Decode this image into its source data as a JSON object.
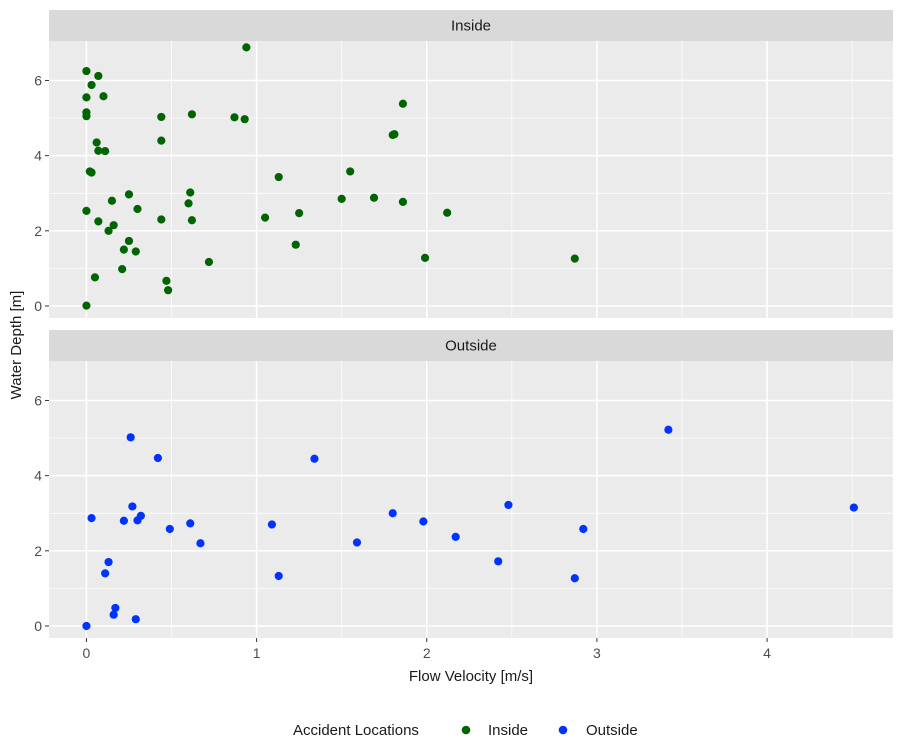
{
  "chart_data": {
    "type": "scatter",
    "xlabel": "Flow Velocity [m/s]",
    "ylabel": "Water Depth [m]",
    "xlim": [
      -0.22,
      4.74
    ],
    "ylim": [
      -0.32,
      7.05
    ],
    "x_ticks": [
      0,
      1,
      2,
      3,
      4
    ],
    "y_ticks": [
      0,
      2,
      4,
      6
    ],
    "grid": true,
    "legend_position": "bottom",
    "legend_title": "Accident Locations",
    "colors": {
      "Inside": "#006400",
      "Outside": "#0033ff"
    },
    "panels": [
      {
        "label": "Inside",
        "series": "Inside",
        "points": [
          [
            0.0,
            6.25
          ],
          [
            0.07,
            6.12
          ],
          [
            0.03,
            5.88
          ],
          [
            0.0,
            5.55
          ],
          [
            0.1,
            5.58
          ],
          [
            0.0,
            5.15
          ],
          [
            0.0,
            5.05
          ],
          [
            0.06,
            4.35
          ],
          [
            0.07,
            4.13
          ],
          [
            0.11,
            4.12
          ],
          [
            0.02,
            3.58
          ],
          [
            0.03,
            3.55
          ],
          [
            0.15,
            2.8
          ],
          [
            0.25,
            2.97
          ],
          [
            0.3,
            2.58
          ],
          [
            0.0,
            2.53
          ],
          [
            0.07,
            2.25
          ],
          [
            0.16,
            2.15
          ],
          [
            0.13,
            2.0
          ],
          [
            0.25,
            1.73
          ],
          [
            0.22,
            1.5
          ],
          [
            0.29,
            1.45
          ],
          [
            0.21,
            0.98
          ],
          [
            0.05,
            0.76
          ],
          [
            0.0,
            0.01
          ],
          [
            0.44,
            5.03
          ],
          [
            0.44,
            4.4
          ],
          [
            0.44,
            2.3
          ],
          [
            0.47,
            0.67
          ],
          [
            0.48,
            0.42
          ],
          [
            0.6,
            2.73
          ],
          [
            0.61,
            3.02
          ],
          [
            0.62,
            2.28
          ],
          [
            0.62,
            5.1
          ],
          [
            0.72,
            1.17
          ],
          [
            0.87,
            5.02
          ],
          [
            0.93,
            4.97
          ],
          [
            0.94,
            6.88
          ],
          [
            1.05,
            2.35
          ],
          [
            1.13,
            3.43
          ],
          [
            1.23,
            1.63
          ],
          [
            1.25,
            2.47
          ],
          [
            1.5,
            2.85
          ],
          [
            1.55,
            3.58
          ],
          [
            1.69,
            2.88
          ],
          [
            1.8,
            4.55
          ],
          [
            1.81,
            4.57
          ],
          [
            1.86,
            5.38
          ],
          [
            1.86,
            2.77
          ],
          [
            1.99,
            1.28
          ],
          [
            2.12,
            2.48
          ],
          [
            2.87,
            1.26
          ]
        ]
      },
      {
        "label": "Outside",
        "series": "Outside",
        "points": [
          [
            0.0,
            0.0
          ],
          [
            0.03,
            2.87
          ],
          [
            0.11,
            1.4
          ],
          [
            0.13,
            1.7
          ],
          [
            0.16,
            0.3
          ],
          [
            0.17,
            0.48
          ],
          [
            0.22,
            2.8
          ],
          [
            0.26,
            5.02
          ],
          [
            0.27,
            3.18
          ],
          [
            0.29,
            0.18
          ],
          [
            0.3,
            2.81
          ],
          [
            0.32,
            2.93
          ],
          [
            0.42,
            4.47
          ],
          [
            0.49,
            2.58
          ],
          [
            0.61,
            2.73
          ],
          [
            0.67,
            2.2
          ],
          [
            1.09,
            2.7
          ],
          [
            1.13,
            1.33
          ],
          [
            1.34,
            4.45
          ],
          [
            1.59,
            2.22
          ],
          [
            1.8,
            3.0
          ],
          [
            1.98,
            2.78
          ],
          [
            2.17,
            2.37
          ],
          [
            2.42,
            1.72
          ],
          [
            2.48,
            3.22
          ],
          [
            2.87,
            1.27
          ],
          [
            2.92,
            2.58
          ],
          [
            3.42,
            5.22
          ],
          [
            4.51,
            3.15
          ]
        ]
      }
    ]
  }
}
